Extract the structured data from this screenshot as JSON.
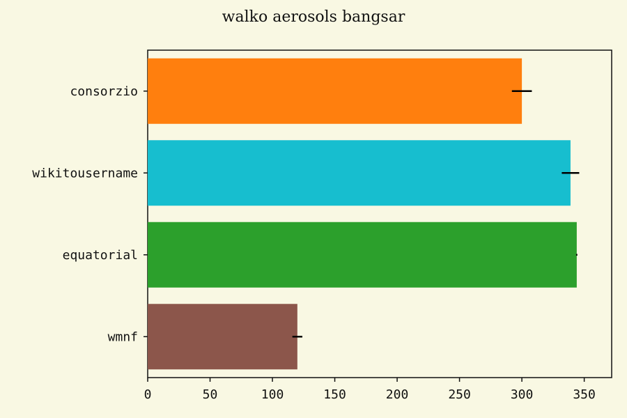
{
  "chart_data": {
    "type": "bar",
    "orientation": "horizontal",
    "title": "walko aerosols bangsar",
    "xlabel": "",
    "ylabel": "",
    "xlim": [
      0,
      372
    ],
    "xticks": [
      0,
      50,
      100,
      150,
      200,
      250,
      300,
      350
    ],
    "grid": false,
    "categories": [
      "consorzio",
      "wikitousername",
      "equatorial",
      "wmnf"
    ],
    "values": [
      300,
      339,
      344,
      120
    ],
    "errors": [
      8,
      7,
      0.5,
      4
    ],
    "colors": [
      "#ff7f0e",
      "#17becf",
      "#2ca02c",
      "#8c564b"
    ]
  },
  "background": "#f9f8e3"
}
